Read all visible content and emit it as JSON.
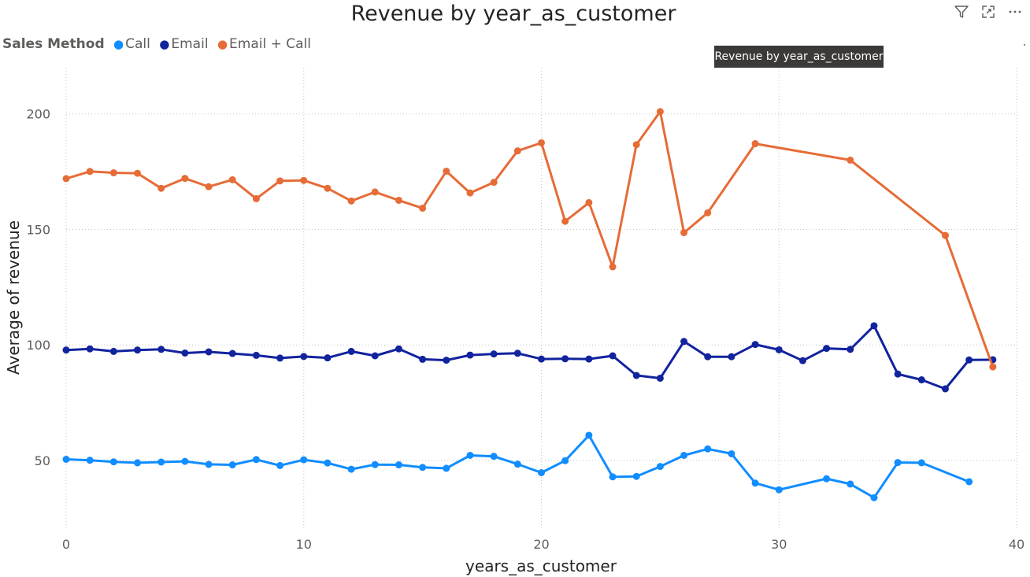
{
  "chart_data": {
    "type": "line",
    "title": "Revenue by year_as_customer",
    "xlabel": "years_as_customer",
    "ylabel": "Average of revenue",
    "xlim": [
      0,
      40
    ],
    "ylim": [
      20,
      220
    ],
    "x_ticks": [
      "0",
      "10",
      "20",
      "30",
      "40"
    ],
    "y_ticks": [
      "50",
      "100",
      "150",
      "200"
    ],
    "grid": true,
    "legend_title": "Sales Method",
    "legend_position": "top-left",
    "series": [
      {
        "name": "Call",
        "color": "#118dff",
        "x": [
          0,
          1,
          2,
          3,
          4,
          5,
          6,
          7,
          8,
          9,
          10,
          11,
          12,
          13,
          14,
          15,
          16,
          17,
          18,
          19,
          20,
          21,
          22,
          23,
          24,
          25,
          26,
          27,
          28,
          29,
          30,
          32,
          33,
          34,
          35,
          36,
          38
        ],
        "values": [
          50.5,
          50.1,
          49.4,
          49,
          49.3,
          49.6,
          48.3,
          48.1,
          50.4,
          47.8,
          50.3,
          48.9,
          46.2,
          48.2,
          48.1,
          47,
          46.6,
          52.2,
          51.8,
          48.4,
          44.7,
          49.9,
          60.9,
          42.9,
          43.1,
          47.4,
          52.2,
          55,
          52.9,
          40.2,
          37.3,
          42.1,
          39.8,
          33.9,
          49.1,
          49,
          40.8
        ]
      },
      {
        "name": "Email",
        "color": "#12239e",
        "x": [
          0,
          1,
          2,
          3,
          4,
          5,
          6,
          7,
          8,
          9,
          10,
          11,
          12,
          13,
          14,
          15,
          16,
          17,
          18,
          19,
          20,
          21,
          22,
          23,
          24,
          25,
          26,
          27,
          28,
          29,
          30,
          31,
          32,
          33,
          34,
          35,
          36,
          37,
          38,
          39
        ],
        "values": [
          97.8,
          98.3,
          97.2,
          97.8,
          98.1,
          96.5,
          97,
          96.3,
          95.5,
          94.3,
          95,
          94.4,
          97.2,
          95.3,
          98.3,
          93.8,
          93.4,
          95.6,
          96.1,
          96.4,
          93.9,
          94,
          93.9,
          95.3,
          86.8,
          85.6,
          101.5,
          94.9,
          94.9,
          100.2,
          97.9,
          93.2,
          98.5,
          98.1,
          108.3,
          87.4,
          84.9,
          81,
          93.5,
          93.6
        ]
      },
      {
        "name": "Email + Call",
        "color": "#e66c37",
        "x": [
          0,
          1,
          2,
          3,
          4,
          5,
          6,
          7,
          8,
          9,
          10,
          11,
          12,
          13,
          14,
          15,
          16,
          17,
          18,
          19,
          20,
          21,
          22,
          23,
          24,
          25,
          26,
          27,
          29,
          33,
          37,
          39
        ],
        "values": [
          172,
          175.1,
          174.5,
          174.3,
          167.8,
          172.1,
          168.5,
          171.5,
          163.3,
          171,
          171.2,
          167.8,
          162.3,
          166.2,
          162.6,
          159.2,
          175.2,
          165.8,
          170.4,
          184,
          187.5,
          153.5,
          161.6,
          133.8,
          186.7,
          201,
          148.6,
          157.2,
          187.1,
          180,
          147.4,
          90.5
        ]
      }
    ]
  },
  "tooltip": "Revenue by year_as_customer",
  "toolbar": {
    "filter_icon": "filter-icon",
    "focus_icon": "focus-mode-icon",
    "more_icon": "more-options-icon"
  }
}
